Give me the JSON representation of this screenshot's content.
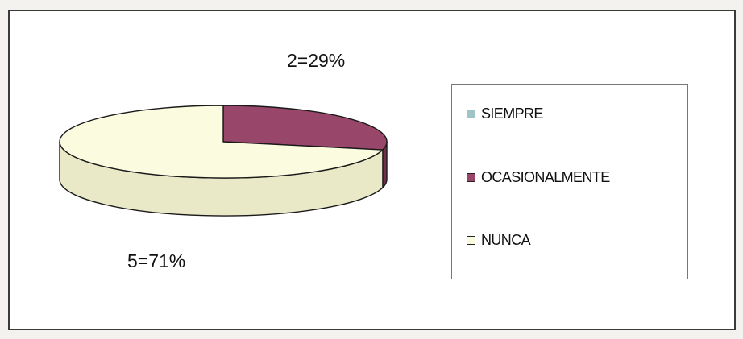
{
  "chart_data": {
    "type": "pie",
    "style": "3d",
    "categories": [
      "SIEMPRE",
      "OCASIONALMENTE",
      "NUNCA"
    ],
    "values": [
      0,
      2,
      5
    ],
    "percent_labels": [
      "",
      "2=29%",
      "5=71%"
    ],
    "colors": [
      "#9fc4c7",
      "#98476a",
      "#fbfbdf"
    ],
    "side_colors": [
      "#7aa89c",
      "#70304c",
      "#e9e9c8"
    ],
    "legend_position": "right",
    "title": "",
    "xlabel": "",
    "ylabel": ""
  }
}
